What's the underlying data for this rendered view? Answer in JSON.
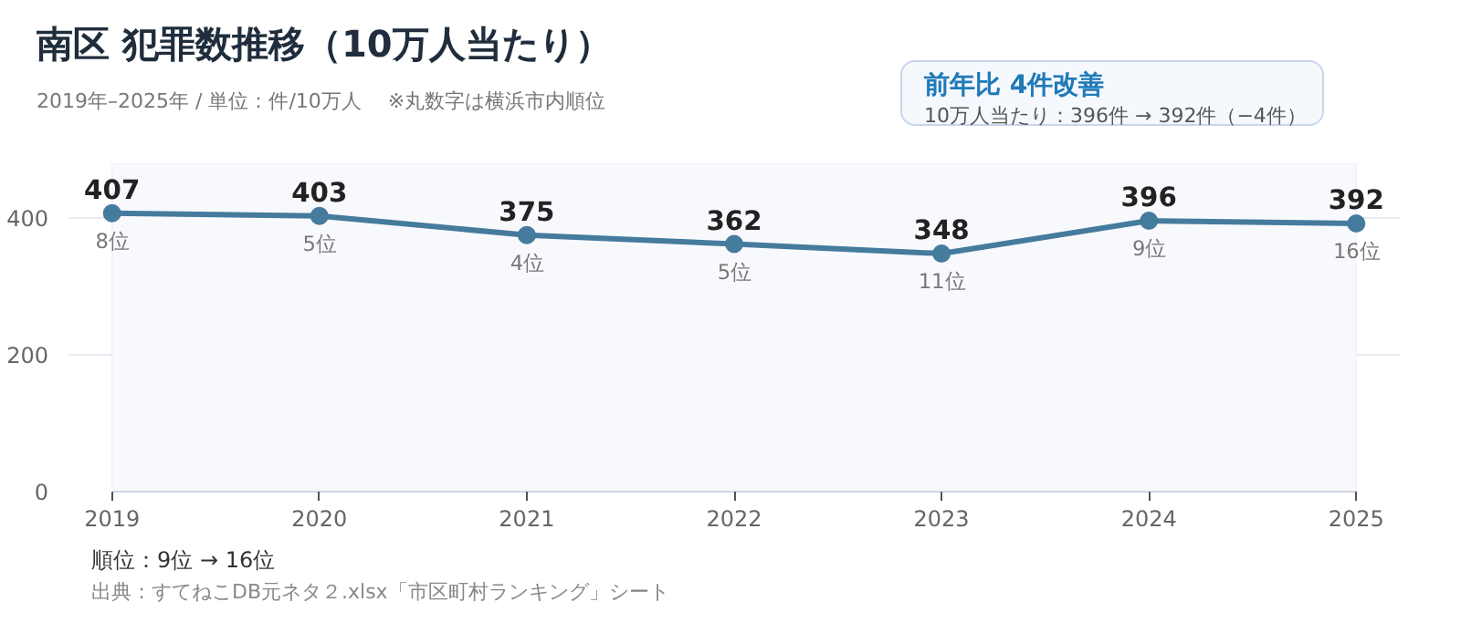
{
  "chart_data": {
    "type": "line",
    "title": "南区  犯罪数推移（10万人当たり）",
    "subtitle": "2019年–2025年 / 単位：件/10万人　 ※丸数字は横浜市内順位",
    "x": [
      2019,
      2020,
      2021,
      2022,
      2023,
      2024,
      2025
    ],
    "series": [
      {
        "color": "#457b9d",
        "values": [
          407,
          403,
          375,
          362,
          348,
          396,
          392
        ]
      }
    ],
    "xlim": [
      2019,
      2025
    ],
    "xticks": [
      2019,
      2020,
      2021,
      2022,
      2023,
      2024,
      2025
    ],
    "ylim": [
      0,
      480
    ],
    "yticks": [
      0,
      200,
      400
    ],
    "grid": "y",
    "marker": "circle",
    "line_style": "solid",
    "data_labels": true,
    "annotations": [
      {
        "text": "8位",
        "x": 2019,
        "y": 407
      },
      {
        "text": "5位",
        "x": 2020,
        "y": 403
      },
      {
        "text": "4位",
        "x": 2021,
        "y": 375
      },
      {
        "text": "5位",
        "x": 2022,
        "y": 362
      },
      {
        "text": "11位",
        "x": 2023,
        "y": 348
      },
      {
        "text": "9位",
        "x": 2024,
        "y": 396
      },
      {
        "text": "16位",
        "x": 2025,
        "y": 392
      },
      "前年比  4件改善",
      "10万人当たり：396件 → 392件（−4件）",
      "順位：9位 → 16位",
      "出典：すてねこDB元ネタ２.xlsx「市区町村ランキング」シート"
    ]
  }
}
